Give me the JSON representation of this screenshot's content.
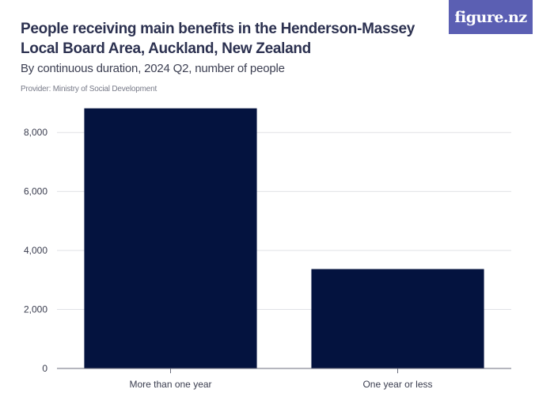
{
  "header": {
    "title": "People receiving main benefits in the Henderson-Massey Local Board Area, Auckland, New Zealand",
    "subtitle": "By continuous duration, 2024 Q2, number of people",
    "provider": "Provider: Ministry of Social Development"
  },
  "logo": {
    "text": "figure.nz",
    "background": "#5b5fb3"
  },
  "chart_data": {
    "type": "bar",
    "title": "People receiving main benefits in the Henderson-Massey Local Board Area, Auckland, New Zealand",
    "subtitle": "By continuous duration, 2024 Q2, number of people",
    "xlabel": "",
    "ylabel": "",
    "categories": [
      "More than one year",
      "One year or less"
    ],
    "values": [
      8820,
      3370
    ],
    "ylim": [
      0,
      9000
    ],
    "yticks": [
      0,
      2000,
      4000,
      6000,
      8000
    ],
    "ytick_labels": [
      "0",
      "2,000",
      "4,000",
      "6,000",
      "8,000"
    ],
    "grid": true,
    "bar_color": "#04133f"
  }
}
